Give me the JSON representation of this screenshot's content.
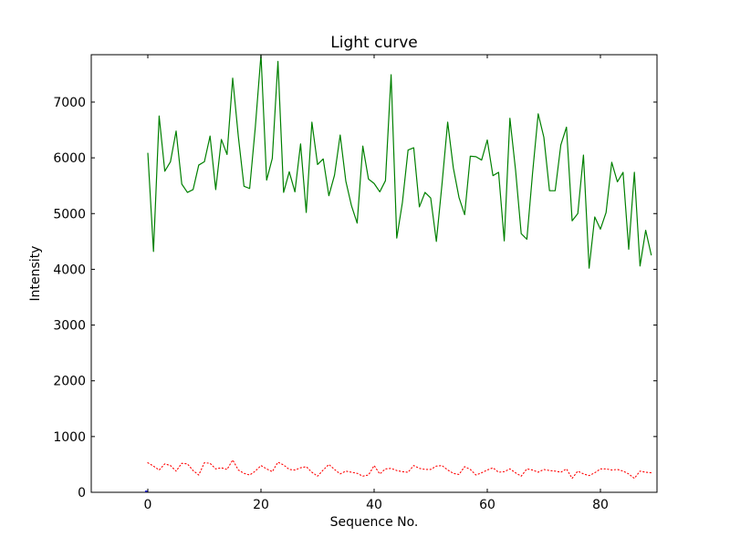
{
  "chart_data": {
    "type": "line",
    "title": "Light curve",
    "xlabel": "Sequence No.",
    "ylabel": "Intensity",
    "xlim": [
      -10,
      90
    ],
    "ylim": [
      0,
      7850
    ],
    "xticks": [
      0,
      20,
      40,
      60,
      80
    ],
    "yticks": [
      0,
      1000,
      2000,
      3000,
      4000,
      5000,
      6000,
      7000
    ],
    "grid": false,
    "legend": "none",
    "colors": {
      "green": "#008000",
      "red": "#ff0000",
      "blue": "#0000ff"
    },
    "series": [
      {
        "style": "solid",
        "color": "#008000",
        "x": [
          0,
          1,
          2,
          3,
          4,
          5,
          6,
          7,
          8,
          9,
          10,
          11,
          12,
          13,
          14,
          15,
          16,
          17,
          18,
          19,
          20,
          21,
          22,
          23,
          24,
          25,
          26,
          27,
          28,
          29,
          30,
          31,
          32,
          33,
          34,
          35,
          36,
          37,
          38,
          39,
          40,
          41,
          42,
          43,
          44,
          45,
          46,
          47,
          48,
          49,
          50,
          51,
          52,
          53,
          54,
          55,
          56,
          57,
          58,
          59,
          60,
          61,
          62,
          63,
          64,
          65,
          66,
          67,
          68,
          69,
          70,
          71,
          72,
          73,
          74,
          75,
          76,
          77,
          78,
          79,
          80,
          81,
          82,
          83,
          84,
          85,
          86,
          87,
          88,
          89
        ],
        "y": [
          6090,
          4320,
          6750,
          5760,
          5930,
          6480,
          5530,
          5380,
          5430,
          5870,
          5930,
          6390,
          5430,
          6330,
          6060,
          7430,
          6380,
          5490,
          5450,
          6550,
          7850,
          5600,
          5990,
          7730,
          5380,
          5750,
          5390,
          6250,
          5020,
          6640,
          5880,
          5980,
          5320,
          5690,
          6410,
          5580,
          5140,
          4830,
          6210,
          5620,
          5540,
          5390,
          5590,
          7490,
          4560,
          5200,
          6140,
          6180,
          5120,
          5380,
          5280,
          4500,
          5530,
          6640,
          5820,
          5290,
          4980,
          6030,
          6020,
          5960,
          6320,
          5680,
          5740,
          4510,
          6710,
          5780,
          4640,
          4540,
          5720,
          6790,
          6370,
          5410,
          5410,
          6230,
          6550,
          4870,
          5000,
          6050,
          4020,
          4940,
          4720,
          5020,
          5920,
          5570,
          5740,
          4360,
          5740,
          4060,
          4700,
          4250
        ]
      },
      {
        "style": "dotted",
        "color": "#ff0000",
        "x": [
          0,
          1,
          2,
          3,
          4,
          5,
          6,
          7,
          8,
          9,
          10,
          11,
          12,
          13,
          14,
          15,
          16,
          17,
          18,
          19,
          20,
          21,
          22,
          23,
          24,
          25,
          26,
          27,
          28,
          29,
          30,
          31,
          32,
          33,
          34,
          35,
          36,
          37,
          38,
          39,
          40,
          41,
          42,
          43,
          44,
          45,
          46,
          47,
          48,
          49,
          50,
          51,
          52,
          53,
          54,
          55,
          56,
          57,
          58,
          59,
          60,
          61,
          62,
          63,
          64,
          65,
          66,
          67,
          68,
          69,
          70,
          71,
          72,
          73,
          74,
          75,
          76,
          77,
          78,
          79,
          80,
          81,
          82,
          83,
          84,
          85,
          86,
          87,
          88,
          89
        ],
        "y": [
          530,
          470,
          400,
          510,
          480,
          380,
          520,
          510,
          390,
          310,
          530,
          520,
          420,
          440,
          410,
          580,
          400,
          340,
          310,
          380,
          480,
          420,
          370,
          540,
          490,
          410,
          400,
          440,
          460,
          360,
          290,
          400,
          500,
          410,
          330,
          380,
          360,
          340,
          290,
          310,
          480,
          330,
          420,
          430,
          390,
          370,
          360,
          480,
          430,
          410,
          410,
          470,
          480,
          400,
          340,
          320,
          460,
          410,
          310,
          350,
          400,
          440,
          360,
          370,
          420,
          350,
          290,
          420,
          400,
          360,
          410,
          390,
          380,
          360,
          420,
          250,
          380,
          330,
          300,
          350,
          420,
          420,
          400,
          410,
          380,
          330,
          250,
          380,
          360,
          350
        ]
      },
      {
        "style": "solid",
        "color": "#0000ff",
        "x": [
          -0.5,
          0
        ],
        "y": [
          20,
          20
        ]
      }
    ]
  }
}
